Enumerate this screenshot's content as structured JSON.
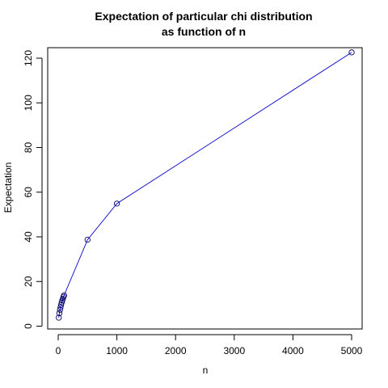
{
  "chart_data": {
    "type": "line",
    "title_lines": [
      "Expectation of particular chi distribution",
      "as function of n"
    ],
    "xlabel": "n",
    "ylabel": "Expectation",
    "xlim": [
      0,
      5000
    ],
    "ylim": [
      0,
      125
    ],
    "xticks": [
      0,
      1000,
      2000,
      3000,
      4000,
      5000
    ],
    "xtick_labels": [
      "0",
      "1000",
      "2000",
      "3000",
      "4000",
      "5000"
    ],
    "yticks": [
      0,
      20,
      40,
      60,
      80,
      100,
      120
    ],
    "ytick_labels": [
      "0",
      "20",
      "40",
      "60",
      "80",
      "100",
      "120"
    ],
    "grid": false,
    "series": [
      {
        "line_color": "#0000cc",
        "marker": "open-circle",
        "marker_color": "#000066",
        "x": [
          10,
          20,
          30,
          40,
          50,
          60,
          70,
          80,
          90,
          100,
          500,
          1000,
          5000
        ],
        "y": [
          3.8,
          5.8,
          7.3,
          8.5,
          9.6,
          10.6,
          11.5,
          12.3,
          13.1,
          13.8,
          38.7,
          54.9,
          122.6
        ]
      }
    ]
  }
}
